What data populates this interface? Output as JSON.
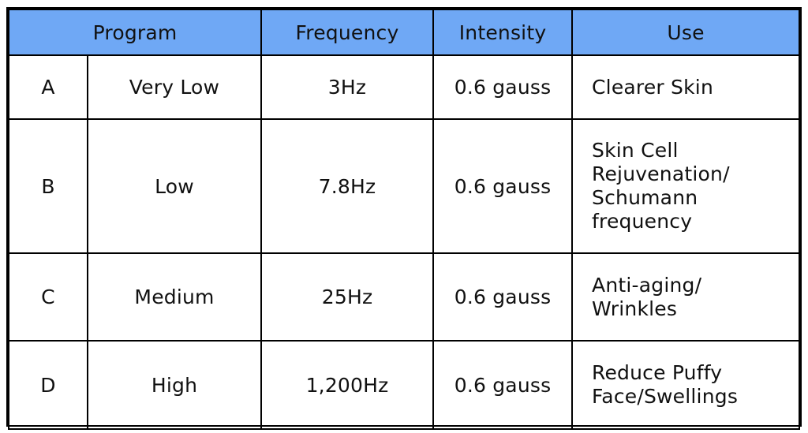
{
  "table": {
    "headers": {
      "program": "Program",
      "frequency": "Frequency",
      "intensity": "Intensity",
      "use": "Use"
    },
    "rows": [
      {
        "letter": "A",
        "level": "Very Low",
        "frequency": "3Hz",
        "intensity": "0.6 gauss",
        "use_lines": [
          "Clearer Skin"
        ]
      },
      {
        "letter": "B",
        "level": "Low",
        "frequency": "7.8Hz",
        "intensity": "0.6 gauss",
        "use_lines": [
          "Skin Cell",
          "Rejuvenation/",
          "Schumann",
          "frequency"
        ]
      },
      {
        "letter": "C",
        "level": "Medium",
        "frequency": "25Hz",
        "intensity": "0.6 gauss",
        "use_lines": [
          "Anti-aging/",
          "Wrinkles"
        ]
      },
      {
        "letter": "D",
        "level": "High",
        "frequency": "1,200Hz",
        "intensity": "0.6 gauss",
        "use_lines": [
          "Reduce Puffy",
          "Face/Swellings"
        ]
      }
    ],
    "colors": {
      "header_background": "#6fa8f5",
      "border": "#000000",
      "text": "#111111"
    }
  }
}
